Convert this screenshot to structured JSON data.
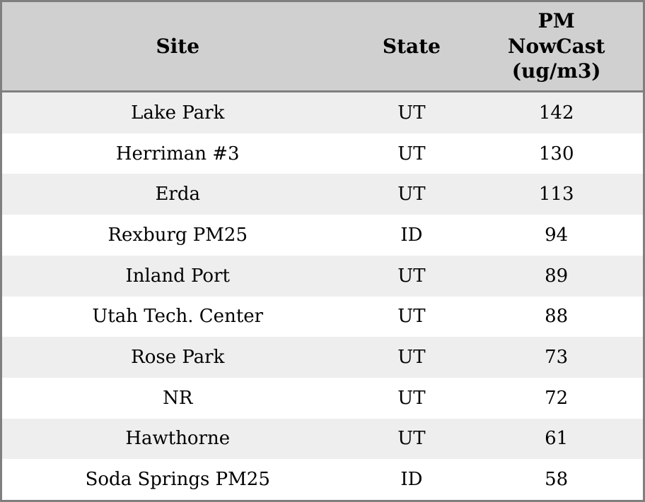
{
  "table": {
    "columns": [
      {
        "label": "Site"
      },
      {
        "label": "State"
      },
      {
        "label": "PM NowCast (ug/m3)"
      }
    ],
    "rows": [
      {
        "site": "Lake Park",
        "state": "UT",
        "pm_nowcast": 142
      },
      {
        "site": "Herriman #3",
        "state": "UT",
        "pm_nowcast": 130
      },
      {
        "site": "Erda",
        "state": "UT",
        "pm_nowcast": 113
      },
      {
        "site": "Rexburg PM25",
        "state": "ID",
        "pm_nowcast": 94
      },
      {
        "site": "Inland Port",
        "state": "UT",
        "pm_nowcast": 89
      },
      {
        "site": "Utah Tech. Center",
        "state": "UT",
        "pm_nowcast": 88
      },
      {
        "site": "Rose Park",
        "state": "UT",
        "pm_nowcast": 73
      },
      {
        "site": "NR",
        "state": "UT",
        "pm_nowcast": 72
      },
      {
        "site": "Hawthorne",
        "state": "UT",
        "pm_nowcast": 61
      },
      {
        "site": "Soda Springs PM25",
        "state": "ID",
        "pm_nowcast": 58
      }
    ]
  },
  "colors": {
    "border": "#7f7f7f",
    "header_bg": "#d0d0d0",
    "row_stripe": "#eeeeee",
    "row_plain": "#ffffff",
    "text": "#000000"
  }
}
